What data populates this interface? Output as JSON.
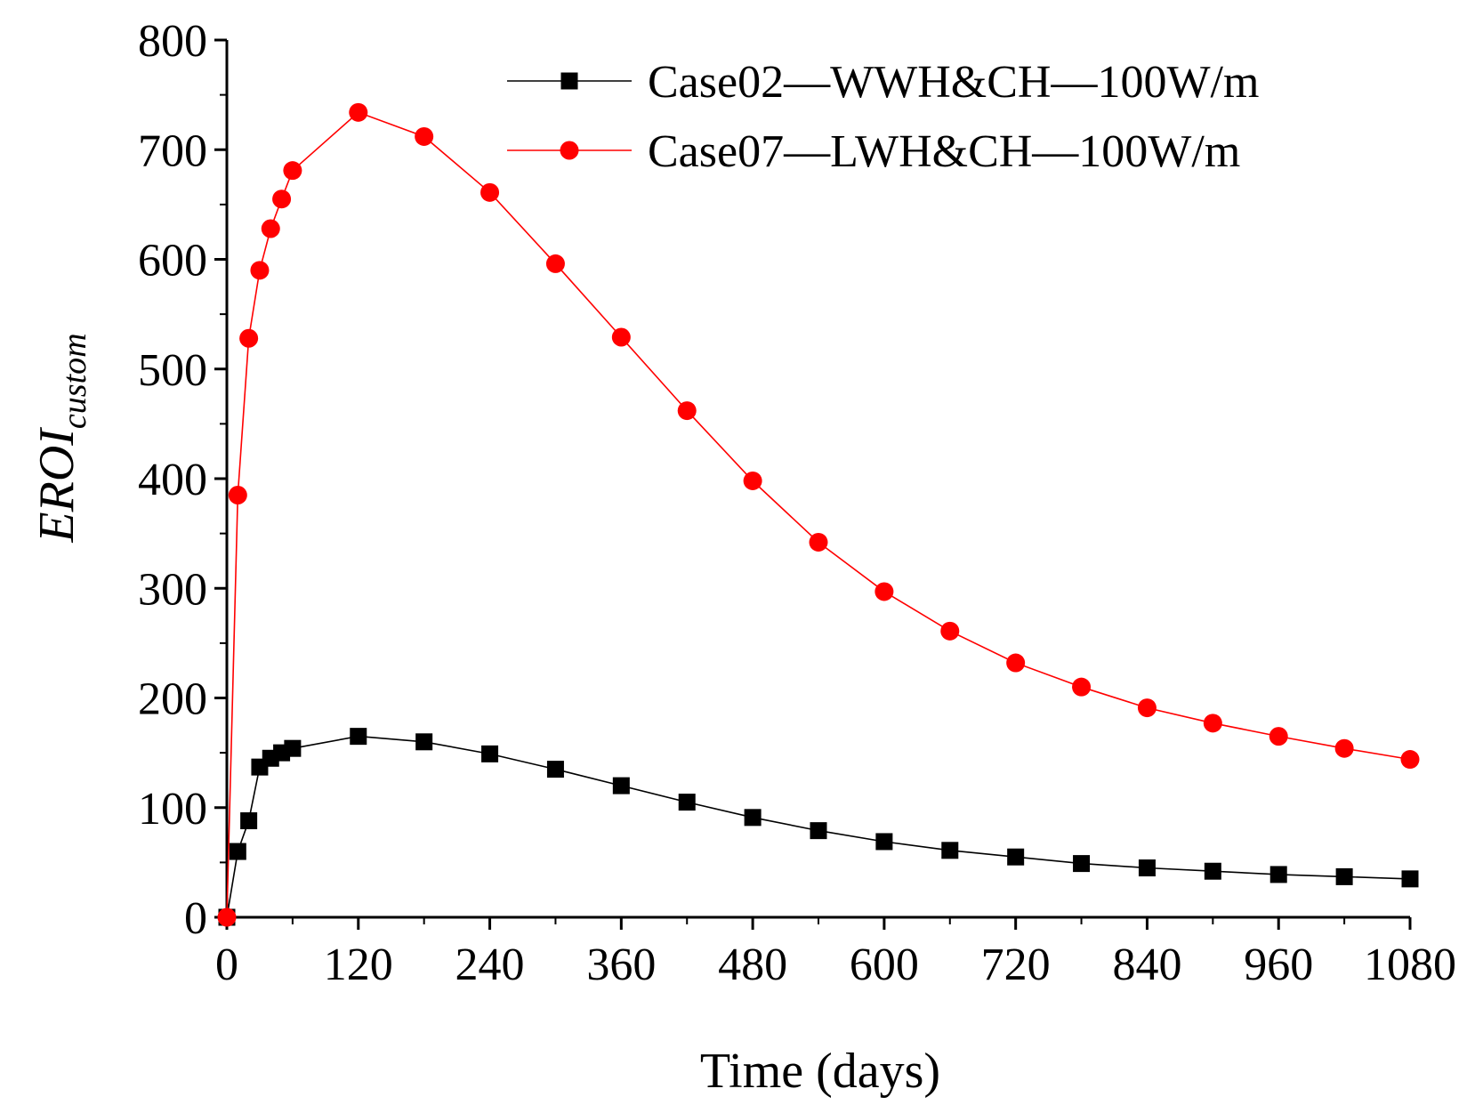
{
  "chart_data": {
    "type": "line",
    "title": "",
    "xlabel": "Time (days)",
    "ylabel": {
      "main": "EROI",
      "subscript": "custom"
    },
    "xlim": [
      0,
      1080
    ],
    "ylim": [
      0,
      800
    ],
    "xticks": [
      "0",
      "120",
      "240",
      "360",
      "480",
      "600",
      "720",
      "840",
      "960",
      "1080"
    ],
    "yticks": [
      "0",
      "100",
      "200",
      "300",
      "400",
      "500",
      "600",
      "700",
      "800"
    ],
    "grid": false,
    "legend_position": "top-right",
    "series": [
      {
        "name": "Case02—WWH&CH—100W/m",
        "color": "#000000",
        "marker": "square",
        "x": [
          0,
          10,
          20,
          30,
          40,
          50,
          60,
          120,
          180,
          240,
          300,
          360,
          420,
          480,
          540,
          600,
          660,
          720,
          780,
          840,
          900,
          960,
          1020,
          1080
        ],
        "y": [
          0,
          60,
          88,
          137,
          145,
          150,
          154,
          165,
          160,
          149,
          135,
          120,
          105,
          91,
          79,
          69,
          61,
          55,
          49,
          45,
          42,
          39,
          37,
          35
        ]
      },
      {
        "name": "Case07—LWH&CH—100W/m",
        "color": "#ff0000",
        "marker": "circle",
        "x": [
          0,
          10,
          20,
          30,
          40,
          50,
          60,
          120,
          180,
          240,
          300,
          360,
          420,
          480,
          540,
          600,
          660,
          720,
          780,
          840,
          900,
          960,
          1020,
          1080
        ],
        "y": [
          0,
          385,
          528,
          590,
          628,
          655,
          681,
          734,
          712,
          661,
          596,
          529,
          462,
          398,
          342,
          297,
          261,
          232,
          210,
          191,
          177,
          165,
          154,
          144
        ]
      }
    ]
  }
}
